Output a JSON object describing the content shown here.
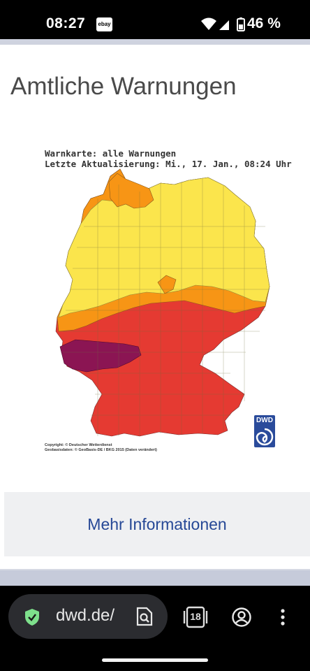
{
  "status_bar": {
    "time": "08:27",
    "notification_app": "ebay",
    "battery": "46 %",
    "icons": [
      "wifi-icon",
      "signal-icon",
      "battery-icon"
    ]
  },
  "page": {
    "title": "Amtliche Warnungen",
    "map": {
      "title_line1": "Warnkarte: alle Warnungen",
      "title_line2": "Letzte Aktualisierung: Mi., 17. Jan., 08:24 Uhr",
      "copyright_line1": "Copyright: © Deutscher Wetterdienst",
      "copyright_line2": "Geobasisdaten: © GeoBasis-DE / BKG 2015 (Daten verändert)",
      "logo_text": "DWD",
      "warning_colors": {
        "yellow": "#fbe54c",
        "orange": "#f79515",
        "red": "#e53a32",
        "purple": "#8b1553"
      }
    },
    "more_button": "Mehr Informationen"
  },
  "browser": {
    "url": "dwd.de/",
    "tab_count": "18",
    "icons": [
      "shield-check-icon",
      "page-search-icon",
      "tabs-icon",
      "account-icon",
      "more-vert-icon"
    ]
  }
}
